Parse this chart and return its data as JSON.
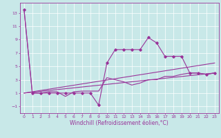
{
  "xlabel": "Windchill (Refroidissement éolien,°C)",
  "ylabel": "",
  "bg_color": "#c8e8e8",
  "line_color": "#993399",
  "xlim": [
    -0.5,
    23.5
  ],
  "ylim": [
    -2,
    14.5
  ],
  "xticks": [
    0,
    1,
    2,
    3,
    4,
    5,
    6,
    7,
    8,
    9,
    10,
    11,
    12,
    13,
    14,
    15,
    16,
    17,
    18,
    19,
    20,
    21,
    22,
    23
  ],
  "yticks": [
    -1,
    1,
    3,
    5,
    7,
    9,
    11,
    13
  ],
  "series": [
    {
      "x": [
        0,
        1,
        2,
        3,
        4,
        5,
        6,
        7,
        8,
        9,
        10,
        11,
        12,
        13,
        14,
        15,
        16,
        17,
        18,
        19,
        20,
        21,
        22,
        23
      ],
      "y": [
        13.5,
        1,
        1,
        1,
        1,
        1,
        1,
        1,
        1,
        -0.8,
        5.5,
        7.5,
        7.5,
        7.5,
        7.5,
        9.3,
        8.5,
        6.5,
        6.5,
        6.5,
        4,
        4,
        3.8,
        4
      ],
      "marker": true
    },
    {
      "x": [
        0,
        1,
        2,
        3,
        4,
        5,
        6,
        7,
        8,
        9,
        10,
        11,
        12,
        13,
        14,
        15,
        16,
        17,
        18,
        19,
        20,
        21,
        22,
        23
      ],
      "y": [
        13.5,
        1,
        1,
        1.2,
        1.2,
        0.5,
        1.2,
        1.3,
        1.3,
        1.3,
        3.3,
        3.0,
        2.7,
        2.2,
        2.5,
        3.0,
        3.0,
        3.5,
        3.5,
        3.8,
        4.0,
        4.0,
        3.8,
        4.0
      ],
      "marker": false
    },
    {
      "x": [
        0,
        23
      ],
      "y": [
        1,
        4
      ],
      "marker": false
    },
    {
      "x": [
        0,
        23
      ],
      "y": [
        1,
        5.5
      ],
      "marker": false
    }
  ]
}
